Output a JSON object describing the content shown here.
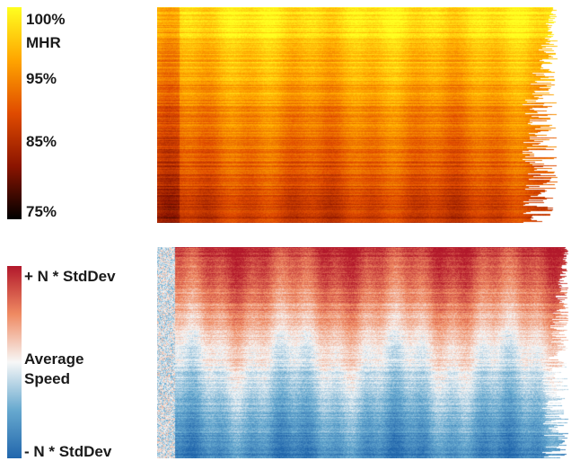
{
  "chart_data": [
    {
      "type": "heatmap",
      "colorbar": {
        "colors": [
          "#ffff20",
          "#ffa500",
          "#e04b00",
          "#8b1400",
          "#000000"
        ],
        "labels": [
          "100%",
          "MHR",
          "95%",
          "85%",
          "75%"
        ],
        "range_percent_mhr": [
          75,
          100
        ]
      },
      "legend_position": "left"
    },
    {
      "type": "heatmap",
      "colorbar": {
        "colors": [
          "#b2182b",
          "#ef8a62",
          "#f7f7f7",
          "#67a9cf",
          "#2166ac"
        ],
        "labels": [
          "+ N * StdDev",
          "Average",
          "Speed",
          "- N * StdDev"
        ]
      },
      "legend_position": "left"
    }
  ]
}
